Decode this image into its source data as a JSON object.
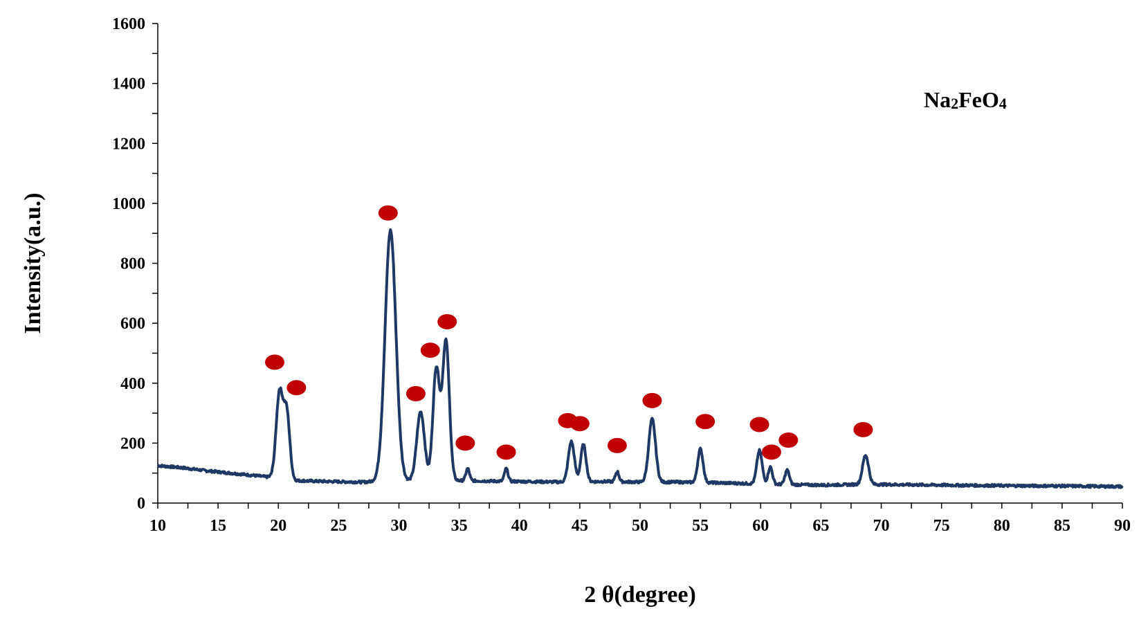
{
  "chart_data": {
    "type": "line",
    "title": "",
    "xlabel": "2 θ(degree)",
    "ylabel": "Intensity(a.u.)",
    "xlim": [
      10,
      90
    ],
    "ylim": [
      0,
      1600
    ],
    "xticks": [
      10,
      15,
      20,
      25,
      30,
      35,
      40,
      45,
      50,
      55,
      60,
      65,
      70,
      75,
      80,
      85,
      90
    ],
    "yticks": [
      0,
      200,
      400,
      600,
      800,
      1000,
      1200,
      1400,
      1600
    ],
    "grid": false,
    "line_color": "#1f3864",
    "marker_color": "#c00000",
    "annotation": {
      "text": "Na",
      "sub1": "2",
      "mid": "FeO",
      "sub2": "4"
    },
    "baseline": [
      [
        10,
        125
      ],
      [
        12,
        118
      ],
      [
        14,
        108
      ],
      [
        16,
        100
      ],
      [
        18,
        92
      ],
      [
        19.5,
        85
      ],
      [
        21.5,
        75
      ],
      [
        24,
        72
      ],
      [
        27,
        70
      ],
      [
        28,
        72
      ],
      [
        31,
        75
      ],
      [
        35,
        75
      ],
      [
        40,
        72
      ],
      [
        44,
        70
      ],
      [
        47,
        72
      ],
      [
        50,
        70
      ],
      [
        53,
        70
      ],
      [
        56,
        68
      ],
      [
        59,
        65
      ],
      [
        62,
        62
      ],
      [
        65,
        60
      ],
      [
        68,
        62
      ],
      [
        70,
        62
      ],
      [
        75,
        60
      ],
      [
        80,
        58
      ],
      [
        85,
        57
      ],
      [
        90,
        55
      ]
    ],
    "peaks": [
      {
        "x": 20.1,
        "y": 370,
        "w": 0.28
      },
      {
        "x": 20.7,
        "y": 295,
        "w": 0.25
      },
      {
        "x": 29.3,
        "y": 910,
        "w": 0.45
      },
      {
        "x": 31.8,
        "y": 305,
        "w": 0.32
      },
      {
        "x": 33.1,
        "y": 450,
        "w": 0.28
      },
      {
        "x": 33.9,
        "y": 540,
        "w": 0.28
      },
      {
        "x": 35.7,
        "y": 115,
        "w": 0.15
      },
      {
        "x": 38.9,
        "y": 115,
        "w": 0.15
      },
      {
        "x": 44.3,
        "y": 205,
        "w": 0.25
      },
      {
        "x": 45.3,
        "y": 195,
        "w": 0.22
      },
      {
        "x": 48.1,
        "y": 105,
        "w": 0.15
      },
      {
        "x": 51.0,
        "y": 280,
        "w": 0.28
      },
      {
        "x": 55.0,
        "y": 180,
        "w": 0.22
      },
      {
        "x": 59.9,
        "y": 175,
        "w": 0.22
      },
      {
        "x": 60.8,
        "y": 120,
        "w": 0.18
      },
      {
        "x": 62.2,
        "y": 110,
        "w": 0.18
      },
      {
        "x": 68.7,
        "y": 160,
        "w": 0.25
      }
    ],
    "markers": [
      {
        "x": 19.7,
        "y": 470
      },
      {
        "x": 21.5,
        "y": 385
      },
      {
        "x": 29.1,
        "y": 968
      },
      {
        "x": 31.4,
        "y": 365
      },
      {
        "x": 32.6,
        "y": 510
      },
      {
        "x": 34.0,
        "y": 605
      },
      {
        "x": 35.5,
        "y": 200
      },
      {
        "x": 38.9,
        "y": 170
      },
      {
        "x": 44.0,
        "y": 275
      },
      {
        "x": 45.0,
        "y": 265
      },
      {
        "x": 48.1,
        "y": 192
      },
      {
        "x": 51.0,
        "y": 342
      },
      {
        "x": 55.4,
        "y": 272
      },
      {
        "x": 59.9,
        "y": 262
      },
      {
        "x": 60.9,
        "y": 170
      },
      {
        "x": 62.3,
        "y": 210
      },
      {
        "x": 68.5,
        "y": 245
      }
    ]
  }
}
